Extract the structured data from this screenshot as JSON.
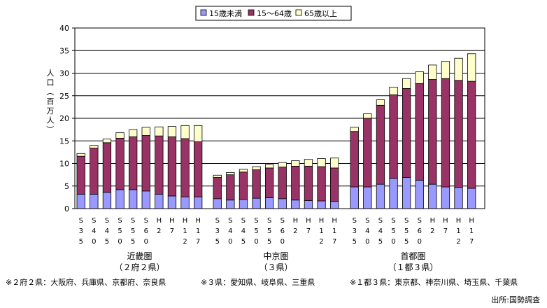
{
  "chart_data": {
    "type": "bar",
    "stacked": true,
    "ylabel": "人口（百万人）",
    "ylim": [
      0,
      40
    ],
    "yticks": [
      0,
      5,
      10,
      15,
      20,
      25,
      30,
      35,
      40
    ],
    "legend": {
      "placement": "top-center",
      "entries": [
        "15歳未満",
        "15～64歳",
        "65歳以上"
      ]
    },
    "colors": {
      "under15": "#9999ff",
      "age15to64": "#993366",
      "over65": "#ffffcc",
      "border": "#000000"
    },
    "categories": [
      "S35",
      "S40",
      "S45",
      "S50",
      "S55",
      "S60",
      "H2",
      "H7",
      "H12",
      "H17"
    ],
    "category_labels": [
      [
        "S",
        "3",
        "5"
      ],
      [
        "S",
        "4",
        "0"
      ],
      [
        "S",
        "4",
        "5"
      ],
      [
        "S",
        "5",
        "0"
      ],
      [
        "S",
        "5",
        "5"
      ],
      [
        "S",
        "6",
        "0"
      ],
      [
        "H",
        "2",
        ""
      ],
      [
        "H",
        "7",
        ""
      ],
      [
        "H",
        "1",
        "2"
      ],
      [
        "H",
        "1",
        "7"
      ]
    ],
    "groups": [
      {
        "name": "近畿圏",
        "subname": "（２府２県）",
        "note": "※２府２県：大阪府、兵庫県、京都府、奈良県",
        "series": [
          {
            "name": "15歳未満",
            "values": [
              3.2,
              3.2,
              3.6,
              4.2,
              4.2,
              3.9,
              3.2,
              2.8,
              2.6,
              2.6
            ]
          },
          {
            "name": "15～64歳",
            "values": [
              8.4,
              10.2,
              11.0,
              11.4,
              11.7,
              12.3,
              12.9,
              13.1,
              12.9,
              12.2
            ]
          },
          {
            "name": "65歳以上",
            "values": [
              0.6,
              0.6,
              0.8,
              1.2,
              1.6,
              1.8,
              2.0,
              2.3,
              2.9,
              3.6
            ]
          }
        ]
      },
      {
        "name": "中京圏",
        "subname": "（３県）",
        "note": "※３県：愛知県、岐阜県、三重県",
        "series": [
          {
            "name": "15歳未満",
            "values": [
              2.2,
              1.9,
              2.0,
              2.3,
              2.4,
              2.2,
              1.9,
              1.8,
              1.7,
              1.6
            ]
          },
          {
            "name": "15～64歳",
            "values": [
              4.7,
              5.6,
              6.1,
              6.3,
              6.6,
              7.0,
              7.5,
              7.6,
              7.6,
              7.4
            ]
          },
          {
            "name": "65歳以上",
            "values": [
              0.5,
              0.5,
              0.6,
              0.7,
              0.8,
              1.0,
              1.2,
              1.5,
              1.8,
              2.2
            ]
          }
        ]
      },
      {
        "name": "首都圏",
        "subname": "（１都３県）",
        "note": "※１都３県：東京都、神奈川県、埼玉県、千葉県",
        "series": [
          {
            "name": "15歳未満",
            "values": [
              4.8,
              4.8,
              5.4,
              6.7,
              6.9,
              6.3,
              5.4,
              4.8,
              4.7,
              4.5
            ]
          },
          {
            "name": "15～64歳",
            "values": [
              12.3,
              15.2,
              17.5,
              18.5,
              19.7,
              21.4,
              23.2,
              24.0,
              23.7,
              23.7
            ]
          },
          {
            "name": "65歳以上",
            "values": [
              0.9,
              1.0,
              1.2,
              1.7,
              2.2,
              2.6,
              3.2,
              3.8,
              4.9,
              6.1
            ]
          }
        ]
      }
    ],
    "source": "出所:国勢調査"
  }
}
